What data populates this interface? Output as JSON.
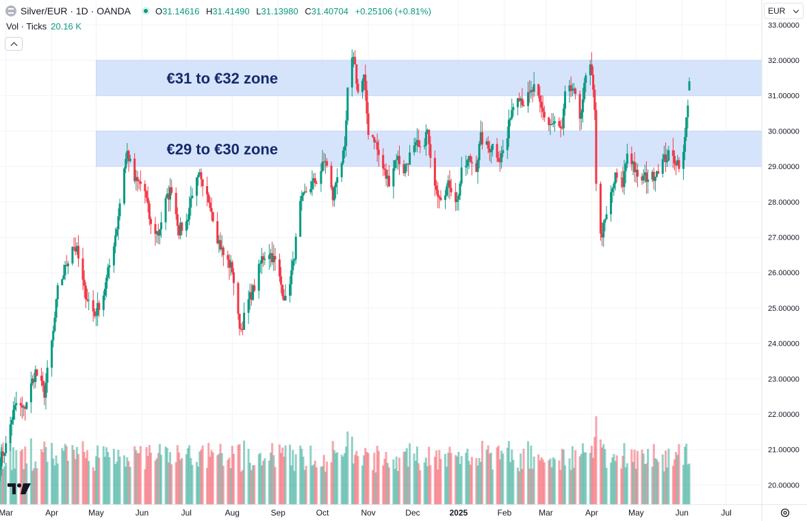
{
  "header": {
    "symbol": "Silver/EUR · 1D · OANDA",
    "ohlc": {
      "o_label": "O",
      "o": "31.14616",
      "h_label": "H",
      "h": "31.41490",
      "l_label": "L",
      "l": "31.13980",
      "c_label": "C",
      "c": "31.40704",
      "change": "+0.25106 (+0.81%)"
    },
    "volume_label": "Vol · Ticks",
    "volume_value": "20.16 K",
    "currency": "EUR"
  },
  "colors": {
    "up": "#089981",
    "down": "#f23645",
    "zone": "#d6e4fb",
    "zone_text": "#152a6b",
    "grid": "#f0f3fa"
  },
  "chart_data": {
    "type": "candlestick",
    "price_axis": {
      "ticks": [
        "33.00000",
        "32.00000",
        "31.00000",
        "30.00000",
        "29.00000",
        "28.00000",
        "27.00000",
        "26.00000",
        "25.00000",
        "24.00000",
        "23.00000",
        "22.00000",
        "21.00000",
        "20.00000"
      ],
      "ylim": [
        19.5,
        33.1
      ]
    },
    "time_axis": {
      "ticks": [
        {
          "label": "Mar",
          "date": "2024-03-01"
        },
        {
          "label": "Apr",
          "date": "2024-04-01"
        },
        {
          "label": "May",
          "date": "2024-05-01"
        },
        {
          "label": "Jun",
          "date": "2024-06-01"
        },
        {
          "label": "Jul",
          "date": "2024-07-01"
        },
        {
          "label": "Aug",
          "date": "2024-08-01"
        },
        {
          "label": "Sep",
          "date": "2024-09-01"
        },
        {
          "label": "Oct",
          "date": "2024-10-01"
        },
        {
          "label": "Nov",
          "date": "2024-11-01"
        },
        {
          "label": "Dec",
          "date": "2024-12-01"
        },
        {
          "label": "2025",
          "date": "2025-01-01"
        },
        {
          "label": "Feb",
          "date": "2025-02-01"
        },
        {
          "label": "Mar",
          "date": "2025-03-01"
        },
        {
          "label": "Apr",
          "date": "2025-04-01"
        },
        {
          "label": "May",
          "date": "2025-05-01"
        },
        {
          "label": "Jun",
          "date": "2025-06-01"
        },
        {
          "label": "Jul",
          "date": "2025-07-01"
        }
      ],
      "range": [
        "2024-02-26",
        "2025-07-25"
      ]
    },
    "zones": [
      {
        "label": "€31 to €32 zone",
        "from": 31.0,
        "to": 32.0,
        "start": "2024-05-01",
        "end": "2025-07-25"
      },
      {
        "label": "€29 to €30 zone",
        "from": 29.0,
        "to": 30.0,
        "start": "2024-05-01",
        "end": "2025-07-25"
      }
    ],
    "price_path": [
      [
        "2024-02-26",
        20.7
      ],
      [
        "2024-03-01",
        21.1
      ],
      [
        "2024-03-05",
        21.9
      ],
      [
        "2024-03-08",
        22.3
      ],
      [
        "2024-03-13",
        22.1
      ],
      [
        "2024-03-18",
        22.8
      ],
      [
        "2024-03-21",
        23.2
      ],
      [
        "2024-03-27",
        22.6
      ],
      [
        "2024-04-02",
        24.3
      ],
      [
        "2024-04-05",
        25.5
      ],
      [
        "2024-04-10",
        26.1
      ],
      [
        "2024-04-15",
        26.8
      ],
      [
        "2024-04-18",
        26.6
      ],
      [
        "2024-04-23",
        25.5
      ],
      [
        "2024-04-30",
        24.8
      ],
      [
        "2024-05-06",
        25.4
      ],
      [
        "2024-05-10",
        26.2
      ],
      [
        "2024-05-15",
        27.3
      ],
      [
        "2024-05-20",
        29.0
      ],
      [
        "2024-05-22",
        29.4
      ],
      [
        "2024-05-27",
        28.6
      ],
      [
        "2024-05-31",
        28.5
      ],
      [
        "2024-06-03",
        28.3
      ],
      [
        "2024-06-07",
        27.3
      ],
      [
        "2024-06-12",
        27.1
      ],
      [
        "2024-06-17",
        28.0
      ],
      [
        "2024-06-21",
        28.4
      ],
      [
        "2024-06-26",
        27.2
      ],
      [
        "2024-07-01",
        27.4
      ],
      [
        "2024-07-05",
        28.3
      ],
      [
        "2024-07-10",
        28.7
      ],
      [
        "2024-07-12",
        28.3
      ],
      [
        "2024-07-17",
        28.0
      ],
      [
        "2024-07-22",
        27.0
      ],
      [
        "2024-07-26",
        26.5
      ],
      [
        "2024-08-01",
        26.1
      ],
      [
        "2024-08-05",
        24.7
      ],
      [
        "2024-08-07",
        24.4
      ],
      [
        "2024-08-12",
        25.2
      ],
      [
        "2024-08-16",
        25.6
      ],
      [
        "2024-08-21",
        26.4
      ],
      [
        "2024-08-26",
        26.6
      ],
      [
        "2024-08-30",
        26.3
      ],
      [
        "2024-09-04",
        25.5
      ],
      [
        "2024-09-06",
        25.2
      ],
      [
        "2024-09-11",
        26.2
      ],
      [
        "2024-09-16",
        27.9
      ],
      [
        "2024-09-20",
        28.3
      ],
      [
        "2024-09-24",
        28.5
      ],
      [
        "2024-09-27",
        28.6
      ],
      [
        "2024-10-03",
        29.2
      ],
      [
        "2024-10-08",
        28.1
      ],
      [
        "2024-10-11",
        28.8
      ],
      [
        "2024-10-16",
        29.4
      ],
      [
        "2024-10-18",
        31.1
      ],
      [
        "2024-10-22",
        32.2
      ],
      [
        "2024-10-25",
        31.1
      ],
      [
        "2024-10-29",
        31.5
      ],
      [
        "2024-11-01",
        30.0
      ],
      [
        "2024-11-05",
        29.8
      ],
      [
        "2024-11-08",
        29.3
      ],
      [
        "2024-11-13",
        28.7
      ],
      [
        "2024-11-15",
        28.6
      ],
      [
        "2024-11-20",
        29.3
      ],
      [
        "2024-11-25",
        28.9
      ],
      [
        "2024-11-29",
        29.3
      ],
      [
        "2024-12-04",
        29.6
      ],
      [
        "2024-12-06",
        29.4
      ],
      [
        "2024-12-11",
        30.0
      ],
      [
        "2024-12-13",
        29.1
      ],
      [
        "2024-12-18",
        28.3
      ],
      [
        "2024-12-20",
        28.2
      ],
      [
        "2024-12-26",
        28.5
      ],
      [
        "2024-12-31",
        28.0
      ],
      [
        "2025-01-03",
        28.8
      ],
      [
        "2025-01-08",
        29.2
      ],
      [
        "2025-01-13",
        29.0
      ],
      [
        "2025-01-16",
        29.8
      ],
      [
        "2025-01-21",
        29.5
      ],
      [
        "2025-01-24",
        29.6
      ],
      [
        "2025-01-29",
        29.2
      ],
      [
        "2025-02-03",
        29.8
      ],
      [
        "2025-02-05",
        30.5
      ],
      [
        "2025-02-10",
        31.1
      ],
      [
        "2025-02-14",
        30.8
      ],
      [
        "2025-02-18",
        31.0
      ],
      [
        "2025-02-21",
        31.2
      ],
      [
        "2025-02-26",
        30.6
      ],
      [
        "2025-03-03",
        30.2
      ],
      [
        "2025-03-07",
        30.2
      ],
      [
        "2025-03-12",
        30.0
      ],
      [
        "2025-03-14",
        31.0
      ],
      [
        "2025-03-19",
        31.2
      ],
      [
        "2025-03-24",
        30.4
      ],
      [
        "2025-03-28",
        31.5
      ],
      [
        "2025-03-31",
        31.8
      ],
      [
        "2025-04-03",
        30.7
      ],
      [
        "2025-04-04",
        28.6
      ],
      [
        "2025-04-07",
        27.0
      ],
      [
        "2025-04-10",
        27.4
      ],
      [
        "2025-04-14",
        28.2
      ],
      [
        "2025-04-17",
        28.7
      ],
      [
        "2025-04-22",
        28.5
      ],
      [
        "2025-04-25",
        29.4
      ],
      [
        "2025-04-29",
        29.1
      ],
      [
        "2025-05-02",
        28.6
      ],
      [
        "2025-05-07",
        28.7
      ],
      [
        "2025-05-12",
        28.7
      ],
      [
        "2025-05-15",
        28.9
      ],
      [
        "2025-05-20",
        29.2
      ],
      [
        "2025-05-23",
        29.3
      ],
      [
        "2025-05-27",
        29.2
      ],
      [
        "2025-05-30",
        29.1
      ],
      [
        "2025-06-02",
        29.3
      ],
      [
        "2025-06-04",
        30.3
      ],
      [
        "2025-06-06",
        31.4
      ]
    ],
    "last": {
      "date": "2025-06-06",
      "open": 31.14616,
      "high": 31.4149,
      "low": 31.1398,
      "close": 31.40704
    },
    "volume_scale_max": 30
  }
}
